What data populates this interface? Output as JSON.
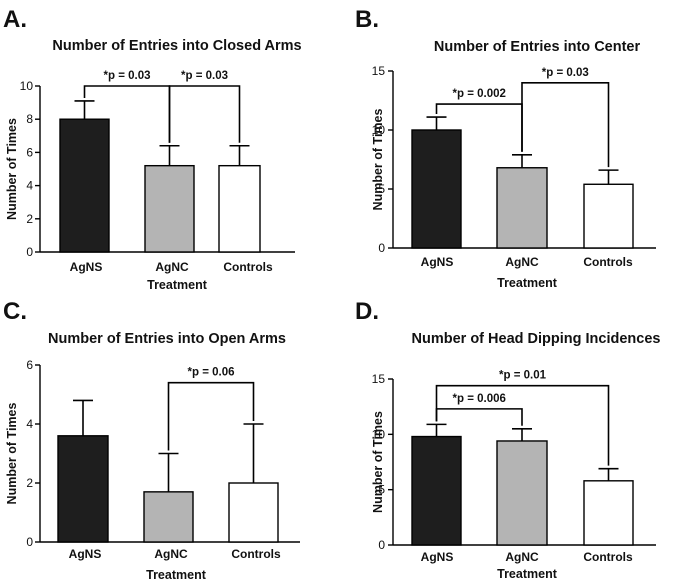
{
  "colors": {
    "black_bar": "#1e1e1e",
    "gray_bar": "#b4b4b4",
    "white_bar": "#ffffff",
    "axis": "#000000"
  },
  "chart_data": [
    {
      "panel_label": "A.",
      "type": "bar",
      "title": "Number of Entries into Closed Arms",
      "xlabel": "Treatment",
      "ylabel": "Number of Times",
      "categories": [
        "AgNS",
        "AgNC",
        "Controls"
      ],
      "values": [
        8.0,
        5.2,
        5.2
      ],
      "errors": [
        1.1,
        1.2,
        1.2
      ],
      "ylim": [
        0,
        10
      ],
      "yticks": [
        "0",
        "2",
        "4",
        "6",
        "8",
        "10"
      ],
      "bar_colors": [
        "#1e1e1e",
        "#b4b4b4",
        "#ffffff"
      ],
      "brackets": [
        {
          "from": 0,
          "to": 1,
          "text": "*p = 0.03",
          "level": 10.0
        },
        {
          "from": 1,
          "to": 2,
          "text": "*p = 0.03",
          "level": 10.0
        }
      ]
    },
    {
      "panel_label": "B.",
      "type": "bar",
      "title": "Number of Entries into Center",
      "xlabel": "Treatment",
      "ylabel": "Number of Times",
      "categories": [
        "AgNS",
        "AgNC",
        "Controls"
      ],
      "values": [
        10.0,
        6.8,
        5.4
      ],
      "errors": [
        1.1,
        1.1,
        1.2
      ],
      "ylim": [
        0,
        15
      ],
      "yticks": [
        "0",
        "5",
        "10",
        "15"
      ],
      "bar_colors": [
        "#1e1e1e",
        "#b4b4b4",
        "#ffffff"
      ],
      "brackets": [
        {
          "from": 0,
          "to": 1,
          "text": "*p = 0.002",
          "level": 12.2
        },
        {
          "from": 1,
          "to": 2,
          "text": "*p = 0.03",
          "level": 14.0
        }
      ]
    },
    {
      "panel_label": "C.",
      "type": "bar",
      "title": "Number of Entries into Open Arms",
      "xlabel": "Treatment",
      "ylabel": "Number of Times",
      "categories": [
        "AgNS",
        "AgNC",
        "Controls"
      ],
      "values": [
        3.6,
        1.7,
        2.0
      ],
      "errors": [
        1.2,
        1.3,
        2.0
      ],
      "ylim": [
        0,
        6
      ],
      "yticks": [
        "0",
        "2",
        "4",
        "6"
      ],
      "bar_colors": [
        "#1e1e1e",
        "#b4b4b4",
        "#ffffff"
      ],
      "brackets": [
        {
          "from": 1,
          "to": 2,
          "text": "*p = 0.06",
          "level": 5.4
        }
      ]
    },
    {
      "panel_label": "D.",
      "type": "bar",
      "title": "Number of Head Dipping Incidences",
      "xlabel": "Treatment",
      "ylabel": "Number of  Times",
      "categories": [
        "AgNS",
        "AgNC",
        "Controls"
      ],
      "values": [
        9.8,
        9.4,
        5.8
      ],
      "errors": [
        1.1,
        1.1,
        1.1
      ],
      "ylim": [
        0,
        15
      ],
      "yticks": [
        "0",
        "5",
        "10",
        "15"
      ],
      "bar_colors": [
        "#1e1e1e",
        "#b4b4b4",
        "#ffffff"
      ],
      "brackets": [
        {
          "from": 0,
          "to": 1,
          "text": "*p = 0.006",
          "level": 12.3
        },
        {
          "from": 0,
          "to": 2,
          "text": "*p = 0.01",
          "level": 14.4
        }
      ]
    }
  ]
}
